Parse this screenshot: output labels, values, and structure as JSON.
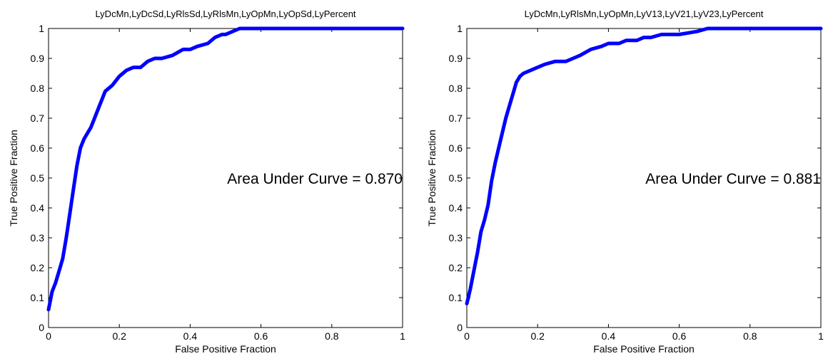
{
  "chart_data": [
    {
      "type": "line",
      "title": "LyDcMn,LyDcSd,LyRlsSd,LyRlsMn,LyOpMn,LyOpSd,LyPercent",
      "xlabel": "False Positive Fraction",
      "ylabel": "True Positive Fraction",
      "xlim": [
        0,
        1
      ],
      "ylim": [
        0,
        1
      ],
      "xticks": [
        "0",
        "0.2",
        "0.4",
        "0.6",
        "0.8",
        "1"
      ],
      "yticks": [
        "0",
        "0.1",
        "0.2",
        "0.3",
        "0.4",
        "0.5",
        "0.6",
        "0.7",
        "0.8",
        "0.9",
        "1"
      ],
      "annotation": "Area Under Curve = 0.870",
      "grid": false,
      "line_color": "#0000ff",
      "series": [
        {
          "x": [
            0,
            0.01,
            0.02,
            0.03,
            0.04,
            0.05,
            0.06,
            0.07,
            0.08,
            0.09,
            0.1,
            0.12,
            0.14,
            0.16,
            0.18,
            0.2,
            0.22,
            0.24,
            0.26,
            0.28,
            0.3,
            0.32,
            0.35,
            0.38,
            0.4,
            0.42,
            0.45,
            0.47,
            0.49,
            0.5,
            0.52,
            0.54,
            0.6,
            0.7,
            0.8,
            0.88,
            0.95,
            1
          ],
          "y": [
            0.06,
            0.12,
            0.15,
            0.19,
            0.23,
            0.3,
            0.38,
            0.46,
            0.54,
            0.6,
            0.63,
            0.67,
            0.73,
            0.79,
            0.81,
            0.84,
            0.86,
            0.87,
            0.87,
            0.89,
            0.9,
            0.9,
            0.91,
            0.93,
            0.93,
            0.94,
            0.95,
            0.97,
            0.98,
            0.98,
            0.99,
            1,
            1,
            1,
            1,
            1,
            1,
            1
          ]
        }
      ]
    },
    {
      "type": "line",
      "title": "LyDcMn,LyRlsMn,LyOpMn,LyV13,LyV21,LyV23,LyPercent",
      "xlabel": "False Positive Fraction",
      "ylabel": "True Positive Fraction",
      "xlim": [
        0,
        1
      ],
      "ylim": [
        0,
        1
      ],
      "xticks": [
        "0",
        "0.2",
        "0.4",
        "0.6",
        "0.8",
        "1"
      ],
      "yticks": [
        "0",
        "0.1",
        "0.2",
        "0.3",
        "0.4",
        "0.5",
        "0.6",
        "0.7",
        "0.8",
        "0.9",
        "1"
      ],
      "annotation": "Area Under Curve = 0.881",
      "grid": false,
      "line_color": "#0000ff",
      "series": [
        {
          "x": [
            0,
            0.01,
            0.02,
            0.03,
            0.04,
            0.05,
            0.06,
            0.07,
            0.08,
            0.09,
            0.1,
            0.11,
            0.12,
            0.13,
            0.14,
            0.15,
            0.16,
            0.18,
            0.2,
            0.22,
            0.25,
            0.28,
            0.3,
            0.32,
            0.35,
            0.38,
            0.4,
            0.43,
            0.45,
            0.48,
            0.5,
            0.52,
            0.55,
            0.6,
            0.65,
            0.68,
            0.7,
            0.8,
            0.9,
            1
          ],
          "y": [
            0.08,
            0.13,
            0.19,
            0.25,
            0.32,
            0.36,
            0.41,
            0.49,
            0.55,
            0.6,
            0.65,
            0.7,
            0.74,
            0.78,
            0.82,
            0.84,
            0.85,
            0.86,
            0.87,
            0.88,
            0.89,
            0.89,
            0.9,
            0.91,
            0.93,
            0.94,
            0.95,
            0.95,
            0.96,
            0.96,
            0.97,
            0.97,
            0.98,
            0.98,
            0.99,
            1,
            1,
            1,
            1,
            1
          ]
        }
      ]
    }
  ]
}
